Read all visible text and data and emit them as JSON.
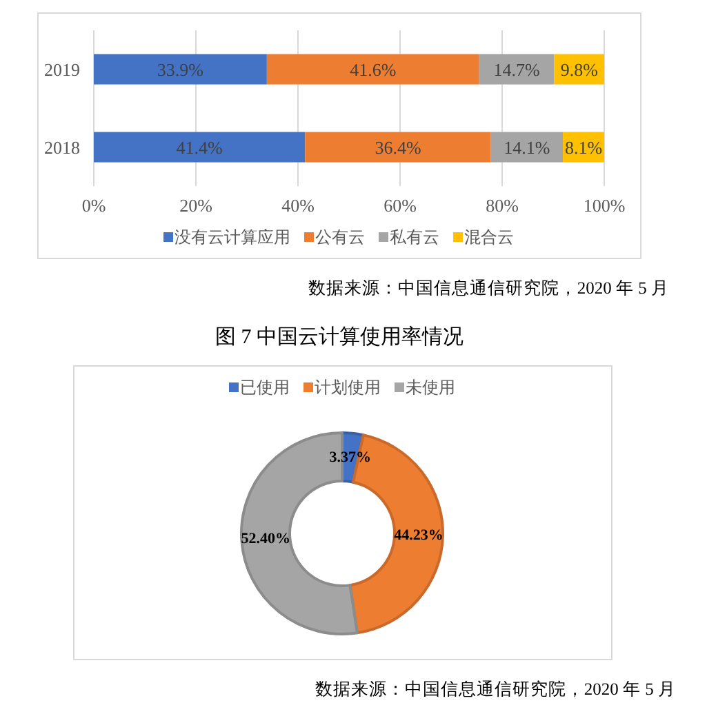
{
  "chart_data": [
    {
      "type": "bar",
      "orientation": "horizontal",
      "stacked": true,
      "categories": [
        "2019",
        "2018"
      ],
      "series": [
        {
          "name": "没有云计算应用",
          "color": "#4472c4",
          "values": [
            33.9,
            41.4
          ],
          "value_labels": [
            "33.9%",
            "41.4%"
          ]
        },
        {
          "name": "公有云",
          "color": "#ed7d31",
          "values": [
            41.6,
            36.4
          ],
          "value_labels": [
            "41.6%",
            "36.4%"
          ]
        },
        {
          "name": "私有云",
          "color": "#a5a5a5",
          "values": [
            14.7,
            14.1
          ],
          "value_labels": [
            "14.7%",
            "14.1%"
          ]
        },
        {
          "name": "混合云",
          "color": "#ffc000",
          "values": [
            9.8,
            8.1
          ],
          "value_labels": [
            "9.8%",
            "8.1%"
          ]
        }
      ],
      "xlim": [
        0,
        100
      ],
      "xticks": [
        {
          "value": 0,
          "label": "0%"
        },
        {
          "value": 20,
          "label": "20%"
        },
        {
          "value": 40,
          "label": "40%"
        },
        {
          "value": 60,
          "label": "60%"
        },
        {
          "value": 80,
          "label": "80%"
        },
        {
          "value": 100,
          "label": "100%"
        }
      ],
      "grid": "x",
      "legend": "bottom",
      "annotations": [
        "数据来源：中国信息通信研究院，2020 年 5 月"
      ]
    },
    {
      "type": "donut",
      "title": "图 7 中国云计算使用率情况",
      "categories": [
        "已使用",
        "计划使用",
        "未使用"
      ],
      "values": [
        3.37,
        44.23,
        52.4
      ],
      "colors": [
        "#4472c4",
        "#ed7d31",
        "#a5a5a5"
      ],
      "value_labels": [
        "3.37%",
        "44.23%",
        "52.40%"
      ],
      "legend": "top",
      "annotations": [
        "数据来源：中国信息通信研究院，2020 年 5 月"
      ]
    }
  ]
}
